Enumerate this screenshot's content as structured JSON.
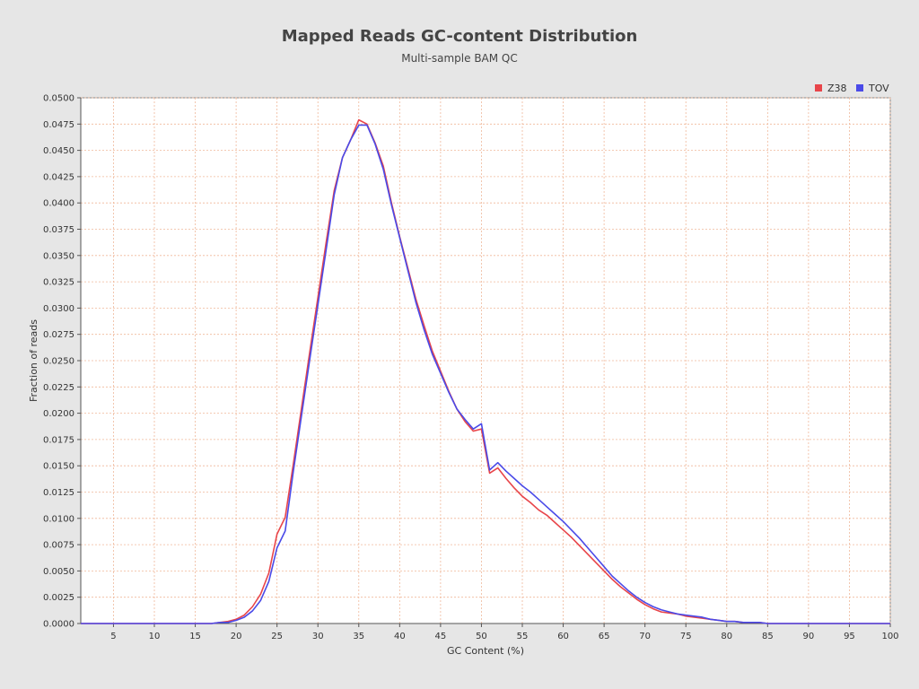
{
  "chart_data": {
    "type": "line",
    "title": "Mapped Reads GC-content Distribution",
    "subtitle": "Multi-sample BAM QC",
    "xlabel": "GC Content (%)",
    "ylabel": "Fraction of reads",
    "xlim": [
      1,
      100
    ],
    "ylim": [
      0,
      0.05
    ],
    "x_ticks": [
      5,
      10,
      15,
      20,
      25,
      30,
      35,
      40,
      45,
      50,
      55,
      60,
      65,
      70,
      75,
      80,
      85,
      90,
      95,
      100
    ],
    "x_tick_labels": [
      "5",
      "10",
      "15",
      "20",
      "25",
      "30",
      "35",
      "40",
      "45",
      "50",
      "55",
      "60",
      "65",
      "70",
      "75",
      "80",
      "85",
      "90",
      "95",
      "100"
    ],
    "y_ticks": [
      0,
      0.0025,
      0.005,
      0.0075,
      0.01,
      0.0125,
      0.015,
      0.0175,
      0.02,
      0.0225,
      0.025,
      0.0275,
      0.03,
      0.0325,
      0.035,
      0.0375,
      0.04,
      0.0425,
      0.045,
      0.0475,
      0.05
    ],
    "y_tick_labels": [
      "0.0000",
      "0.0025",
      "0.0050",
      "0.0075",
      "0.0100",
      "0.0125",
      "0.0150",
      "0.0175",
      "0.0200",
      "0.0225",
      "0.0250",
      "0.0275",
      "0.0300",
      "0.0325",
      "0.0350",
      "0.0375",
      "0.0400",
      "0.0425",
      "0.0450",
      "0.0475",
      "0.0500"
    ],
    "grid": true,
    "legend_position": "top-right",
    "x": [
      1,
      2,
      3,
      4,
      5,
      6,
      7,
      8,
      9,
      10,
      11,
      12,
      13,
      14,
      15,
      16,
      17,
      18,
      19,
      20,
      21,
      22,
      23,
      24,
      25,
      26,
      27,
      28,
      29,
      30,
      31,
      32,
      33,
      34,
      35,
      36,
      37,
      38,
      39,
      40,
      41,
      42,
      43,
      44,
      45,
      46,
      47,
      48,
      49,
      50,
      51,
      52,
      53,
      54,
      55,
      56,
      57,
      58,
      59,
      60,
      61,
      62,
      63,
      64,
      65,
      66,
      67,
      68,
      69,
      70,
      71,
      72,
      73,
      74,
      75,
      76,
      77,
      78,
      79,
      80,
      81,
      82,
      83,
      84,
      85,
      86,
      87,
      88,
      89,
      90,
      91,
      92,
      93,
      94,
      95,
      96,
      97,
      98,
      99,
      100
    ],
    "series": [
      {
        "name": "Z38",
        "color": "#e8454a",
        "values": [
          0,
          0,
          0,
          0,
          0,
          0,
          0,
          0,
          0,
          0,
          0,
          0,
          0,
          0,
          0,
          0,
          0,
          0.0001,
          0.0002,
          0.0004,
          0.0008,
          0.0016,
          0.0028,
          0.0048,
          0.0085,
          0.0101,
          0.0152,
          0.0205,
          0.0258,
          0.031,
          0.0362,
          0.0412,
          0.0443,
          0.046,
          0.0479,
          0.0475,
          0.0457,
          0.0435,
          0.04,
          0.0368,
          0.0338,
          0.0308,
          0.0283,
          0.0259,
          0.024,
          0.0221,
          0.0204,
          0.0192,
          0.0183,
          0.0185,
          0.0143,
          0.0148,
          0.0138,
          0.0129,
          0.0121,
          0.0115,
          0.0108,
          0.0103,
          0.0096,
          0.0089,
          0.0082,
          0.0074,
          0.0066,
          0.0058,
          0.005,
          0.0042,
          0.0035,
          0.0029,
          0.0023,
          0.0018,
          0.0014,
          0.0011,
          0.001,
          0.0009,
          0.0007,
          0.0006,
          0.0005,
          0.0004,
          0.0003,
          0.0002,
          0.0002,
          0.0001,
          0.0001,
          0.0001,
          0,
          0,
          0,
          0,
          0,
          0,
          0,
          0,
          0,
          0,
          0,
          0,
          0,
          0,
          0,
          0
        ]
      },
      {
        "name": "TOV",
        "color": "#4a4ae8",
        "values": [
          0,
          0,
          0,
          0,
          0,
          0,
          0,
          0,
          0,
          0,
          0,
          0,
          0,
          0,
          0,
          0,
          0,
          0.0001,
          0.0001,
          0.0003,
          0.0006,
          0.0012,
          0.0022,
          0.004,
          0.0072,
          0.0088,
          0.0145,
          0.0198,
          0.0251,
          0.0303,
          0.0355,
          0.0408,
          0.0443,
          0.046,
          0.0474,
          0.0474,
          0.0456,
          0.0432,
          0.0398,
          0.0367,
          0.0336,
          0.0305,
          0.0279,
          0.0256,
          0.0238,
          0.022,
          0.0204,
          0.0194,
          0.0185,
          0.019,
          0.0146,
          0.0153,
          0.0145,
          0.0138,
          0.0131,
          0.0125,
          0.0118,
          0.0111,
          0.0104,
          0.0097,
          0.0089,
          0.0081,
          0.0072,
          0.0063,
          0.0054,
          0.0045,
          0.0038,
          0.0031,
          0.0025,
          0.002,
          0.0016,
          0.0013,
          0.0011,
          0.0009,
          0.0008,
          0.0007,
          0.0006,
          0.0004,
          0.0003,
          0.0002,
          0.0002,
          0.0001,
          0.0001,
          0.0001,
          0,
          0,
          0,
          0,
          0,
          0,
          0,
          0,
          0,
          0,
          0,
          0,
          0,
          0,
          0,
          0
        ]
      }
    ]
  }
}
